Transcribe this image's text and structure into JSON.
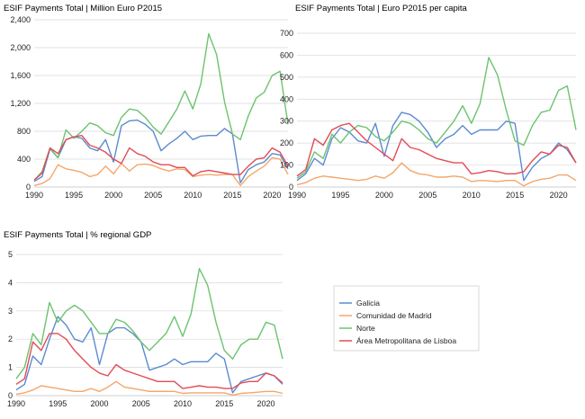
{
  "chart_data": [
    {
      "type": "line",
      "title": "ESIF Payments Total | Million Euro P2015",
      "x": [
        1990,
        1991,
        1992,
        1993,
        1994,
        1995,
        1996,
        1997,
        1998,
        1999,
        2000,
        2001,
        2002,
        2003,
        2004,
        2005,
        2006,
        2007,
        2008,
        2009,
        2010,
        2011,
        2012,
        2013,
        2014,
        2015,
        2016,
        2017,
        2018,
        2019,
        2020,
        2021,
        2022
      ],
      "xticks": [
        1990,
        1995,
        2000,
        2005,
        2010,
        2015,
        2020
      ],
      "ylim": [
        0,
        2400
      ],
      "yticks": [
        0,
        400,
        800,
        1200,
        1600,
        2000,
        2400
      ],
      "ytick_labels": [
        "0",
        "400",
        "800",
        "1,200",
        "1,600",
        "2,000",
        "2,400"
      ],
      "series": [
        {
          "name": "Galicia",
          "color": "#5b8bd0",
          "values": [
            80,
            150,
            550,
            420,
            680,
            720,
            700,
            560,
            520,
            680,
            360,
            880,
            950,
            960,
            900,
            800,
            520,
            620,
            700,
            800,
            680,
            730,
            740,
            740,
            840,
            760,
            60,
            250,
            320,
            360,
            480,
            460,
            260
          ]
        },
        {
          "name": "Comunidad de Madrid",
          "color": "#f4a66a",
          "values": [
            20,
            50,
            120,
            320,
            260,
            240,
            210,
            150,
            180,
            300,
            190,
            340,
            230,
            320,
            330,
            310,
            260,
            230,
            260,
            250,
            150,
            170,
            180,
            170,
            180,
            180,
            20,
            150,
            230,
            300,
            420,
            400,
            180
          ]
        },
        {
          "name": "Norte",
          "color": "#6cc36e",
          "values": [
            100,
            220,
            560,
            420,
            820,
            700,
            800,
            920,
            880,
            780,
            740,
            1000,
            1120,
            1100,
            1000,
            860,
            760,
            940,
            1120,
            1380,
            1120,
            1480,
            2200,
            1900,
            1220,
            760,
            680,
            1020,
            1280,
            1360,
            1600,
            1660,
            900
          ]
        },
        {
          "name": "Área Metropolitana de Lisboa",
          "color": "#e24b55",
          "values": [
            100,
            200,
            560,
            480,
            680,
            720,
            740,
            600,
            560,
            500,
            400,
            340,
            560,
            480,
            440,
            360,
            320,
            320,
            280,
            280,
            160,
            220,
            240,
            220,
            200,
            180,
            180,
            300,
            400,
            420,
            560,
            500,
            300
          ]
        }
      ]
    },
    {
      "type": "line",
      "title": "ESIF Payments Total | Euro P2015 per capita",
      "x": [
        1990,
        1991,
        1992,
        1993,
        1994,
        1995,
        1996,
        1997,
        1998,
        1999,
        2000,
        2001,
        2002,
        2003,
        2004,
        2005,
        2006,
        2007,
        2008,
        2009,
        2010,
        2011,
        2012,
        2013,
        2014,
        2015,
        2016,
        2017,
        2018,
        2019,
        2020,
        2021,
        2022
      ],
      "xticks": [
        1990,
        1995,
        2000,
        2005,
        2010,
        2015,
        2020
      ],
      "ylim": [
        0,
        700
      ],
      "yticks": [
        0,
        100,
        200,
        300,
        400,
        500,
        600,
        700
      ],
      "ytick_labels": [
        "0",
        "100",
        "200",
        "300",
        "400",
        "500",
        "600",
        "700"
      ],
      "series": [
        {
          "name": "Galicia",
          "color": "#5b8bd0",
          "values": [
            30,
            60,
            130,
            100,
            220,
            270,
            250,
            210,
            200,
            290,
            140,
            280,
            340,
            330,
            300,
            250,
            180,
            220,
            240,
            280,
            240,
            260,
            260,
            260,
            300,
            290,
            30,
            90,
            130,
            150,
            200,
            170,
            110
          ]
        },
        {
          "name": "Comunidad de Madrid",
          "color": "#f4a66a",
          "values": [
            10,
            20,
            40,
            50,
            45,
            40,
            35,
            30,
            35,
            50,
            40,
            65,
            110,
            75,
            60,
            55,
            45,
            45,
            50,
            45,
            25,
            30,
            28,
            25,
            30,
            30,
            5,
            25,
            35,
            40,
            55,
            55,
            30
          ]
        },
        {
          "name": "Norte",
          "color": "#6cc36e",
          "values": [
            40,
            70,
            160,
            130,
            240,
            200,
            250,
            280,
            270,
            230,
            210,
            250,
            300,
            290,
            260,
            220,
            200,
            250,
            300,
            370,
            290,
            380,
            590,
            510,
            350,
            210,
            190,
            280,
            340,
            350,
            440,
            460,
            260
          ]
        },
        {
          "name": "Área Metropolitana de Lisboa",
          "color": "#e24b55",
          "values": [
            50,
            80,
            220,
            190,
            260,
            280,
            290,
            250,
            210,
            180,
            150,
            120,
            220,
            180,
            170,
            150,
            130,
            120,
            110,
            110,
            60,
            65,
            75,
            70,
            60,
            60,
            70,
            120,
            160,
            150,
            190,
            180,
            110
          ]
        }
      ]
    },
    {
      "type": "line",
      "title": "ESIF Payments Total | % regional GDP",
      "x": [
        1990,
        1991,
        1992,
        1993,
        1994,
        1995,
        1996,
        1997,
        1998,
        1999,
        2000,
        2001,
        2002,
        2003,
        2004,
        2005,
        2006,
        2007,
        2008,
        2009,
        2010,
        2011,
        2012,
        2013,
        2014,
        2015,
        2016,
        2017,
        2018,
        2019,
        2020,
        2021,
        2022
      ],
      "xticks": [
        1990,
        1995,
        2000,
        2005,
        2010,
        2015,
        2020
      ],
      "ylim": [
        0,
        5
      ],
      "yticks": [
        0,
        1,
        2,
        3,
        4,
        5
      ],
      "ytick_labels": [
        "0",
        "1",
        "2",
        "3",
        "4",
        "5"
      ],
      "series": [
        {
          "name": "Galicia",
          "color": "#5b8bd0",
          "values": [
            0.2,
            0.4,
            1.4,
            1.1,
            2.0,
            2.8,
            2.5,
            2.0,
            1.9,
            2.4,
            1.1,
            2.2,
            2.4,
            2.4,
            2.2,
            1.9,
            0.9,
            1.0,
            1.1,
            1.3,
            1.1,
            1.2,
            1.2,
            1.2,
            1.5,
            1.3,
            0.1,
            0.5,
            0.6,
            0.7,
            0.8,
            0.7,
            0.4
          ]
        },
        {
          "name": "Comunidad de Madrid",
          "color": "#f4a66a",
          "values": [
            0.05,
            0.1,
            0.2,
            0.35,
            0.3,
            0.25,
            0.2,
            0.15,
            0.15,
            0.25,
            0.15,
            0.3,
            0.5,
            0.3,
            0.25,
            0.2,
            0.15,
            0.15,
            0.15,
            0.15,
            0.08,
            0.1,
            0.1,
            0.1,
            0.1,
            0.1,
            0.02,
            0.08,
            0.1,
            0.12,
            0.15,
            0.15,
            0.08
          ]
        },
        {
          "name": "Norte",
          "color": "#6cc36e",
          "values": [
            0.6,
            1.0,
            2.2,
            1.8,
            3.3,
            2.6,
            3.0,
            3.2,
            3.0,
            2.6,
            2.2,
            2.2,
            2.7,
            2.6,
            2.3,
            1.9,
            1.6,
            1.9,
            2.2,
            2.8,
            2.1,
            2.9,
            4.5,
            3.9,
            2.6,
            1.6,
            1.3,
            1.8,
            2.0,
            2.0,
            2.6,
            2.5,
            1.3
          ]
        },
        {
          "name": "Área Metropolitana de Lisboa",
          "color": "#e24b55",
          "values": [
            0.4,
            0.6,
            1.9,
            1.6,
            2.2,
            2.2,
            2.0,
            1.6,
            1.3,
            1.0,
            0.8,
            0.7,
            1.1,
            0.9,
            0.8,
            0.7,
            0.6,
            0.5,
            0.5,
            0.5,
            0.25,
            0.3,
            0.35,
            0.3,
            0.3,
            0.25,
            0.25,
            0.45,
            0.5,
            0.5,
            0.8,
            0.7,
            0.45
          ]
        }
      ]
    }
  ],
  "legend": [
    {
      "name": "Galicia",
      "color": "#5b8bd0"
    },
    {
      "name": "Comunidad de Madrid",
      "color": "#f4a66a"
    },
    {
      "name": "Norte",
      "color": "#6cc36e"
    },
    {
      "name": "Área Metropolitana de Lisboa",
      "color": "#e24b55"
    }
  ]
}
